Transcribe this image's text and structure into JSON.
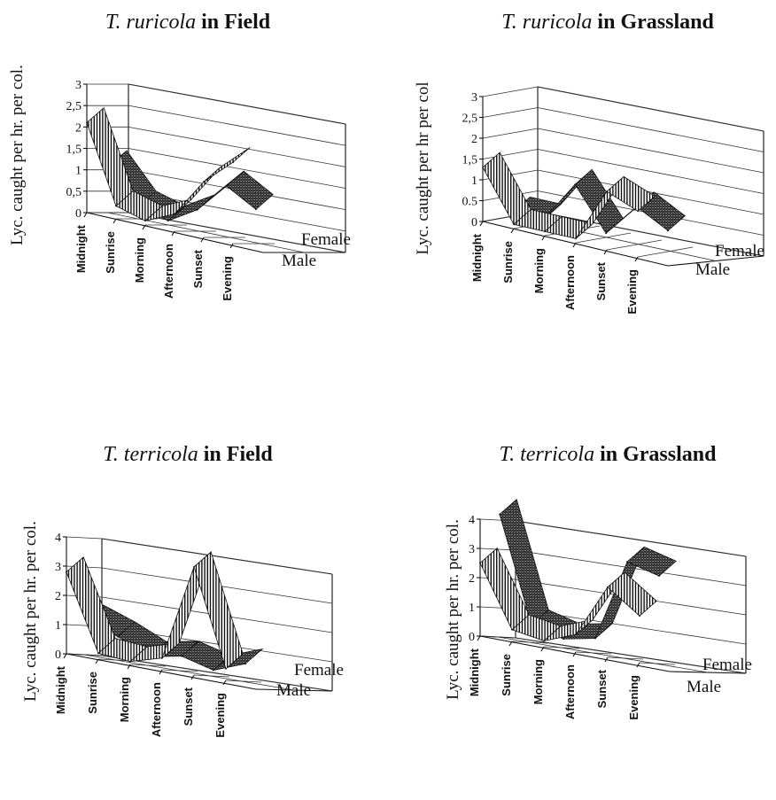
{
  "chart_data": [
    {
      "type": "area",
      "title": {
        "species": "T. ruricola",
        "rest": "in Field"
      },
      "ylabel": "Lyc. caught per hr. per col.",
      "ylim": [
        0,
        3
      ],
      "yticks": [
        "0",
        "0,5",
        "1",
        "1,5",
        "2",
        "2,5",
        "3"
      ],
      "categories": [
        "Midnight",
        "Sunrise",
        "Morning",
        "Afternoon",
        "Sunset",
        "Evening"
      ],
      "series": [
        {
          "name": "Male",
          "values": [
            2.1,
            0.3,
            0.1,
            0.4,
            1.3,
            1.9
          ]
        },
        {
          "name": "Female",
          "values": [
            1.1,
            0.3,
            0.1,
            0.5,
            1.2,
            0.8
          ]
        }
      ]
    },
    {
      "type": "area",
      "title": {
        "species": "T. ruricola",
        "rest": "in Grassland"
      },
      "ylabel": "Lyc. caught per hr per col",
      "ylim": [
        0,
        3
      ],
      "yticks": [
        "0",
        "0.5",
        "1",
        "1,5",
        "2",
        "2,5",
        "3"
      ],
      "categories": [
        "Midnight",
        "Sunrise",
        "Morning",
        "Afternoon",
        "Sunset",
        "Evening"
      ],
      "series": [
        {
          "name": "Male",
          "values": [
            1.3,
            0.1,
            0.1,
            0.1,
            1.4,
            1.1
          ]
        },
        {
          "name": "Female",
          "values": [
            0.1,
            0.1,
            1.1,
            0.1,
            0.9,
            0.5
          ]
        }
      ]
    },
    {
      "type": "area",
      "title": {
        "species": "T. terricola",
        "rest": "in Field"
      },
      "ylabel": "Lyc. caught per hr. per col.",
      "ylim": [
        0,
        4
      ],
      "yticks": [
        "0",
        "1",
        "2",
        "3",
        "4"
      ],
      "categories": [
        "Midnight",
        "Sunrise",
        "Morning",
        "Afternoon",
        "Sunset",
        "Evening"
      ],
      "series": [
        {
          "name": "Male",
          "values": [
            2.8,
            0.2,
            0.1,
            0.4,
            3.7,
            0.4
          ]
        },
        {
          "name": "Female",
          "values": [
            1.2,
            0.8,
            0.3,
            0.5,
            0.2,
            0.6
          ]
        }
      ]
    },
    {
      "type": "area",
      "title": {
        "species": "T. terricola",
        "rest": "in Grassland"
      },
      "ylabel": "Lyc. caught per hr. per col.",
      "ylim": [
        0,
        4
      ],
      "yticks": [
        "0",
        "1",
        "2",
        "3",
        "4"
      ],
      "categories": [
        "Midnight",
        "Sunrise",
        "Morning",
        "Afternoon",
        "Sunset",
        "Evening"
      ],
      "series": [
        {
          "name": "Male",
          "values": [
            2.5,
            0.4,
            0.2,
            0.6,
            2.4,
            1.6
          ]
        },
        {
          "name": "Female",
          "values": [
            4.2,
            0.6,
            0.3,
            0.5,
            3.3,
            3.0
          ]
        }
      ]
    }
  ],
  "colors": {
    "male_pattern": "vertical-hatch",
    "female_pattern": "dark-crosshatch",
    "ink": "#111111"
  }
}
